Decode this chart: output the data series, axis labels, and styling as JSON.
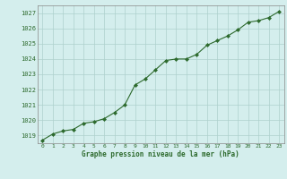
{
  "x": [
    0,
    1,
    2,
    3,
    4,
    5,
    6,
    7,
    8,
    9,
    10,
    11,
    12,
    13,
    14,
    15,
    16,
    17,
    18,
    19,
    20,
    21,
    22,
    23
  ],
  "y": [
    1018.7,
    1019.1,
    1019.3,
    1019.4,
    1019.8,
    1019.9,
    1020.1,
    1020.5,
    1021.0,
    1022.3,
    1022.7,
    1023.3,
    1023.9,
    1024.0,
    1024.0,
    1024.3,
    1024.9,
    1025.2,
    1025.5,
    1025.9,
    1026.4,
    1026.5,
    1026.7,
    1027.1
  ],
  "line_color": "#2d6a2d",
  "marker": "D",
  "marker_size": 2.0,
  "bg_color": "#d4eeed",
  "grid_color": "#aed0cc",
  "text_color": "#2d6a2d",
  "xlabel": "Graphe pression niveau de la mer (hPa)",
  "ylim": [
    1018.5,
    1027.5
  ],
  "xlim": [
    -0.5,
    23.5
  ],
  "yticks": [
    1019,
    1020,
    1021,
    1022,
    1023,
    1024,
    1025,
    1026,
    1027
  ],
  "xticks": [
    0,
    1,
    2,
    3,
    4,
    5,
    6,
    7,
    8,
    9,
    10,
    11,
    12,
    13,
    14,
    15,
    16,
    17,
    18,
    19,
    20,
    21,
    22,
    23
  ],
  "linewidth": 0.8,
  "spine_color": "#888888"
}
